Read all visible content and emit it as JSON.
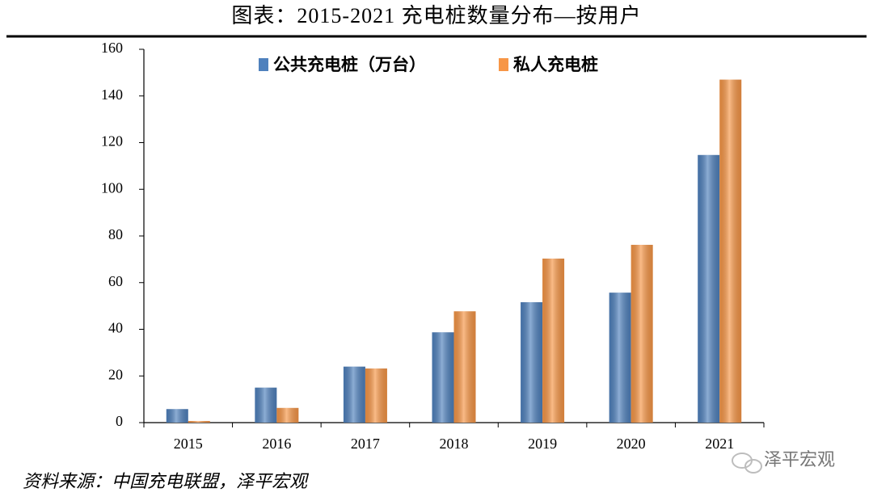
{
  "chart_data": {
    "type": "bar",
    "title": "图表：2015-2021 充电桩数量分布—按用户",
    "categories": [
      "2015",
      "2016",
      "2017",
      "2018",
      "2019",
      "2020",
      "2021"
    ],
    "series": [
      {
        "name": "公共充电桩（万台）",
        "color": "#4f81bd",
        "values": [
          5.8,
          15,
          24,
          38.7,
          51.6,
          55.7,
          114.7
        ]
      },
      {
        "name": "私人充电桩",
        "color": "#f79646",
        "values": [
          0.7,
          6.3,
          23.2,
          47.7,
          70.3,
          76.2,
          147
        ]
      }
    ],
    "ylim": [
      0,
      160
    ],
    "yticks": [
      0,
      20,
      40,
      60,
      80,
      100,
      120,
      140,
      160
    ],
    "grid": false,
    "legend": "top",
    "source": "资料来源：中国充电联盟，泽平宏观",
    "watermark": "泽平宏观"
  }
}
